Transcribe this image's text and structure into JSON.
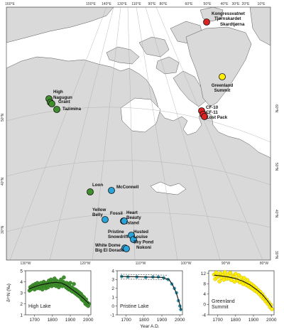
{
  "map": {
    "colors": {
      "ocean": "#ffffff",
      "land": "#d9d9d9",
      "coast": "#555555",
      "graticule": "#aaaaaa",
      "green": "#3f8f2c",
      "blue": "#29a3d8",
      "red": "#dd2222",
      "yellow": "#ffee00"
    },
    "top_longitudes": [
      "160°E",
      "150°E",
      "140°E",
      "130°E",
      "110°E",
      "90°E",
      "80°E",
      "60°E",
      "50°E",
      "40°E",
      "30°E",
      "20°E",
      "10°E"
    ],
    "bottom_longitudes": [
      "130°W",
      "120°W",
      "110°W",
      "100°W",
      "90°W",
      "80°W"
    ],
    "left_latitudes": [
      "50°N",
      "40°N",
      "30°N"
    ],
    "right_latitudes": [
      "60°N",
      "50°N",
      "40°N",
      "30°N"
    ],
    "sites": [
      {
        "id": "kongressvatnet",
        "group": "red",
        "label": "Kongressvatnet"
      },
      {
        "id": "tjornskardet",
        "group": "red",
        "label": "Tjørnskardet"
      },
      {
        "id": "skardtjorna",
        "group": "red",
        "label": "Skardtjørna"
      },
      {
        "id": "greenland-summit",
        "group": "yellow",
        "label": "Greenland\nSummit"
      },
      {
        "id": "cf-10",
        "group": "red",
        "label": "CF-10"
      },
      {
        "id": "cf-11",
        "group": "red",
        "label": "CF-11"
      },
      {
        "id": "lost-pack",
        "group": "red",
        "label": "Lost Pack"
      },
      {
        "id": "high",
        "group": "green",
        "label": "High"
      },
      {
        "id": "nagugun",
        "group": "green",
        "label": "Nagugun"
      },
      {
        "id": "grant",
        "group": "green",
        "label": "Grant"
      },
      {
        "id": "tazimina",
        "group": "green",
        "label": "Tazimina"
      },
      {
        "id": "loon",
        "group": "green",
        "label": "Loon"
      },
      {
        "id": "mcconnell",
        "group": "blue",
        "label": "McConnell"
      },
      {
        "id": "yellow-belly",
        "group": "blue",
        "label": "Yellow\nBelly"
      },
      {
        "id": "fossil",
        "group": "blue",
        "label": "Fossil"
      },
      {
        "id": "heart-beauty-island",
        "group": "blue",
        "label": "Heart\nBeauty\nIsland"
      },
      {
        "id": "pristine-snowdrift",
        "group": "blue",
        "label": "Pristine\nSnowdrift"
      },
      {
        "id": "husted-louise-skypond",
        "group": "blue",
        "label": "Husted\nLouise\nSky Pond"
      },
      {
        "id": "white-dome",
        "group": "blue",
        "label": "White Dome\nBig El Dorado"
      },
      {
        "id": "nokoni",
        "group": "blue",
        "label": "Nokoni"
      }
    ]
  },
  "chart_data": [
    {
      "type": "scatter",
      "panel_label": "High Lake",
      "ylabel": "δ¹⁵N (‰)",
      "xlabel": "",
      "xlim": [
        1650,
        2015
      ],
      "ylim": [
        1,
        5
      ],
      "xticks": [
        1700,
        1800,
        1900,
        2000
      ],
      "yticks": [
        1,
        2,
        3,
        4,
        5
      ],
      "color": "#3f8f2c",
      "points": [
        [
          1672,
          3.2
        ],
        [
          1676,
          3.5
        ],
        [
          1680,
          3.3
        ],
        [
          1684,
          3.6
        ],
        [
          1688,
          3.4
        ],
        [
          1692,
          3.7
        ],
        [
          1696,
          3.5
        ],
        [
          1700,
          3.3
        ],
        [
          1704,
          3.8
        ],
        [
          1708,
          3.6
        ],
        [
          1712,
          3.4
        ],
        [
          1716,
          3.9
        ],
        [
          1720,
          3.5
        ],
        [
          1724,
          3.7
        ],
        [
          1728,
          3.4
        ],
        [
          1732,
          3.6
        ],
        [
          1736,
          3.9
        ],
        [
          1740,
          3.5
        ],
        [
          1744,
          3.3
        ],
        [
          1748,
          3.7
        ],
        [
          1752,
          4.0
        ],
        [
          1756,
          3.6
        ],
        [
          1760,
          3.8
        ],
        [
          1764,
          3.4
        ],
        [
          1768,
          3.9
        ],
        [
          1772,
          3.6
        ],
        [
          1776,
          3.5
        ],
        [
          1780,
          4.1
        ],
        [
          1784,
          3.7
        ],
        [
          1788,
          3.9
        ],
        [
          1792,
          4.2
        ],
        [
          1796,
          3.6
        ],
        [
          1800,
          3.8
        ],
        [
          1804,
          4.0
        ],
        [
          1808,
          3.7
        ],
        [
          1812,
          4.3
        ],
        [
          1816,
          3.9
        ],
        [
          1820,
          3.6
        ],
        [
          1824,
          4.1
        ],
        [
          1828,
          3.8
        ],
        [
          1832,
          4.0
        ],
        [
          1836,
          3.5
        ],
        [
          1840,
          3.9
        ],
        [
          1844,
          3.7
        ],
        [
          1848,
          4.2
        ],
        [
          1852,
          3.8
        ],
        [
          1856,
          3.6
        ],
        [
          1860,
          4.0
        ],
        [
          1864,
          4.4
        ],
        [
          1868,
          3.9
        ],
        [
          1872,
          3.7
        ],
        [
          1876,
          3.5
        ],
        [
          1880,
          3.9
        ],
        [
          1884,
          3.4
        ],
        [
          1888,
          3.7
        ],
        [
          1892,
          3.3
        ],
        [
          1896,
          3.6
        ],
        [
          1900,
          3.9
        ],
        [
          1904,
          3.2
        ],
        [
          1908,
          3.5
        ],
        [
          1912,
          3.1
        ],
        [
          1916,
          3.4
        ],
        [
          1920,
          3.8
        ],
        [
          1924,
          3.0
        ],
        [
          1928,
          3.3
        ],
        [
          1932,
          2.9
        ],
        [
          1936,
          3.2
        ],
        [
          1940,
          2.8
        ],
        [
          1944,
          3.1
        ],
        [
          1948,
          2.7
        ],
        [
          1952,
          3.0
        ],
        [
          1956,
          2.6
        ],
        [
          1960,
          2.9
        ],
        [
          1964,
          2.4
        ],
        [
          1968,
          2.7
        ],
        [
          1972,
          2.3
        ],
        [
          1976,
          2.6
        ],
        [
          1980,
          2.2
        ],
        [
          1984,
          2.0
        ],
        [
          1988,
          2.4
        ],
        [
          1992,
          1.9
        ],
        [
          1996,
          2.1
        ],
        [
          2000,
          1.8
        ],
        [
          2004,
          2.0
        ]
      ],
      "trend": [
        [
          1670,
          3.35
        ],
        [
          1700,
          3.55
        ],
        [
          1730,
          3.7
        ],
        [
          1760,
          3.8
        ],
        [
          1790,
          3.9
        ],
        [
          1820,
          3.95
        ],
        [
          1850,
          3.9
        ],
        [
          1880,
          3.65
        ],
        [
          1910,
          3.3
        ],
        [
          1940,
          2.95
        ],
        [
          1970,
          2.55
        ],
        [
          2005,
          2.0
        ]
      ]
    },
    {
      "type": "scatter",
      "panel_label": "Pristine Lake",
      "ylabel": "",
      "xlabel": "Year A.D.",
      "xlim": [
        1650,
        2015
      ],
      "ylim": [
        -1,
        4
      ],
      "xticks": [
        1700,
        1800,
        1900,
        2000
      ],
      "yticks": [
        -1,
        0,
        1,
        2,
        3,
        4
      ],
      "color": "#29a3d8",
      "points": [
        [
          1675,
          3.35
        ],
        [
          1710,
          3.3
        ],
        [
          1760,
          3.3
        ],
        [
          1810,
          3.25
        ],
        [
          1850,
          3.3
        ],
        [
          1880,
          3.3
        ],
        [
          1910,
          3.2
        ],
        [
          1935,
          3.0
        ],
        [
          1955,
          2.5
        ],
        [
          1970,
          2.0
        ],
        [
          1982,
          1.5
        ],
        [
          1992,
          0.6
        ],
        [
          2000,
          0.0
        ],
        [
          2005,
          -0.4
        ]
      ],
      "trend": [
        [
          1670,
          3.35
        ],
        [
          1800,
          3.3
        ],
        [
          1900,
          3.25
        ],
        [
          1940,
          3.0
        ],
        [
          1960,
          2.4
        ],
        [
          1980,
          1.5
        ],
        [
          2000,
          0.2
        ],
        [
          2008,
          -0.5
        ]
      ]
    },
    {
      "type": "scatter",
      "panel_label": "Greenland\nSummit",
      "ylabel": "",
      "xlabel": "",
      "xlim": [
        1650,
        2015
      ],
      "ylim": [
        -4,
        13
      ],
      "xticks": [
        1700,
        1800,
        1900,
        2000
      ],
      "yticks": [
        -4,
        0,
        4,
        8,
        12
      ],
      "color": "#ffee00",
      "points": [
        [
          1680,
          11.5
        ],
        [
          1686,
          9.8
        ],
        [
          1692,
          12.3
        ],
        [
          1698,
          10.5
        ],
        [
          1704,
          11.0
        ],
        [
          1710,
          8.9
        ],
        [
          1716,
          12.0
        ],
        [
          1722,
          10.2
        ],
        [
          1728,
          11.4
        ],
        [
          1734,
          9.5
        ],
        [
          1740,
          12.5
        ],
        [
          1746,
          10.8
        ],
        [
          1752,
          9.9
        ],
        [
          1758,
          11.6
        ],
        [
          1764,
          10.1
        ],
        [
          1770,
          12.2
        ],
        [
          1776,
          9.4
        ],
        [
          1782,
          11.1
        ],
        [
          1788,
          10.6
        ],
        [
          1794,
          8.8
        ],
        [
          1800,
          11.8
        ],
        [
          1806,
          10.0
        ],
        [
          1812,
          9.2
        ],
        [
          1818,
          11.3
        ],
        [
          1824,
          8.5
        ],
        [
          1830,
          10.4
        ],
        [
          1836,
          9.0
        ],
        [
          1842,
          7.9
        ],
        [
          1848,
          10.2
        ],
        [
          1854,
          8.6
        ],
        [
          1860,
          7.5
        ],
        [
          1866,
          9.4
        ],
        [
          1872,
          7.0
        ],
        [
          1878,
          8.3
        ],
        [
          1884,
          6.5
        ],
        [
          1890,
          7.8
        ],
        [
          1896,
          6.0
        ],
        [
          1902,
          7.1
        ],
        [
          1908,
          5.3
        ],
        [
          1914,
          6.4
        ],
        [
          1920,
          4.8
        ],
        [
          1926,
          5.6
        ],
        [
          1932,
          4.0
        ],
        [
          1938,
          4.9
        ],
        [
          1944,
          3.1
        ],
        [
          1950,
          3.9
        ],
        [
          1956,
          2.2
        ],
        [
          1962,
          2.8
        ],
        [
          1968,
          1.2
        ],
        [
          1974,
          1.8
        ],
        [
          1980,
          0.2
        ],
        [
          1986,
          0.8
        ],
        [
          1992,
          -1.0
        ],
        [
          1998,
          -0.2
        ],
        [
          2003,
          -1.8
        ]
      ],
      "trend": [
        [
          1680,
          11.3
        ],
        [
          1720,
          11.0
        ],
        [
          1760,
          10.6
        ],
        [
          1800,
          10.0
        ],
        [
          1840,
          9.0
        ],
        [
          1880,
          7.6
        ],
        [
          1920,
          5.6
        ],
        [
          1950,
          3.8
        ],
        [
          1980,
          1.3
        ],
        [
          2005,
          -1.2
        ]
      ]
    }
  ]
}
